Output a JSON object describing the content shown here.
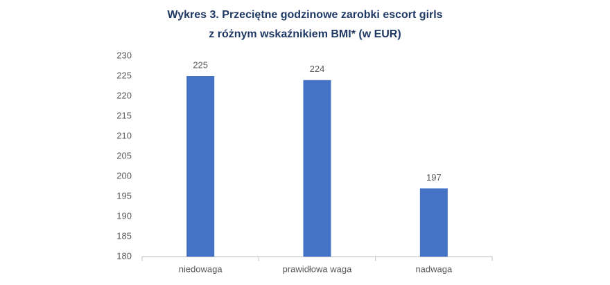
{
  "chart_data": {
    "type": "bar",
    "title": [
      "Wykres 3. Przeciętne godzinowe zarobki escort girls",
      "z różnym wskaźnikiem BMI* (w EUR)"
    ],
    "categories": [
      "niedowaga",
      "prawidłowa waga",
      "nadwaga"
    ],
    "values": [
      225,
      224,
      197
    ],
    "color": "#4472c4",
    "ylim": [
      180,
      230
    ],
    "yticks": [
      180,
      185,
      190,
      195,
      200,
      205,
      210,
      215,
      220,
      225,
      230
    ],
    "grid": false,
    "data_labels": true
  }
}
